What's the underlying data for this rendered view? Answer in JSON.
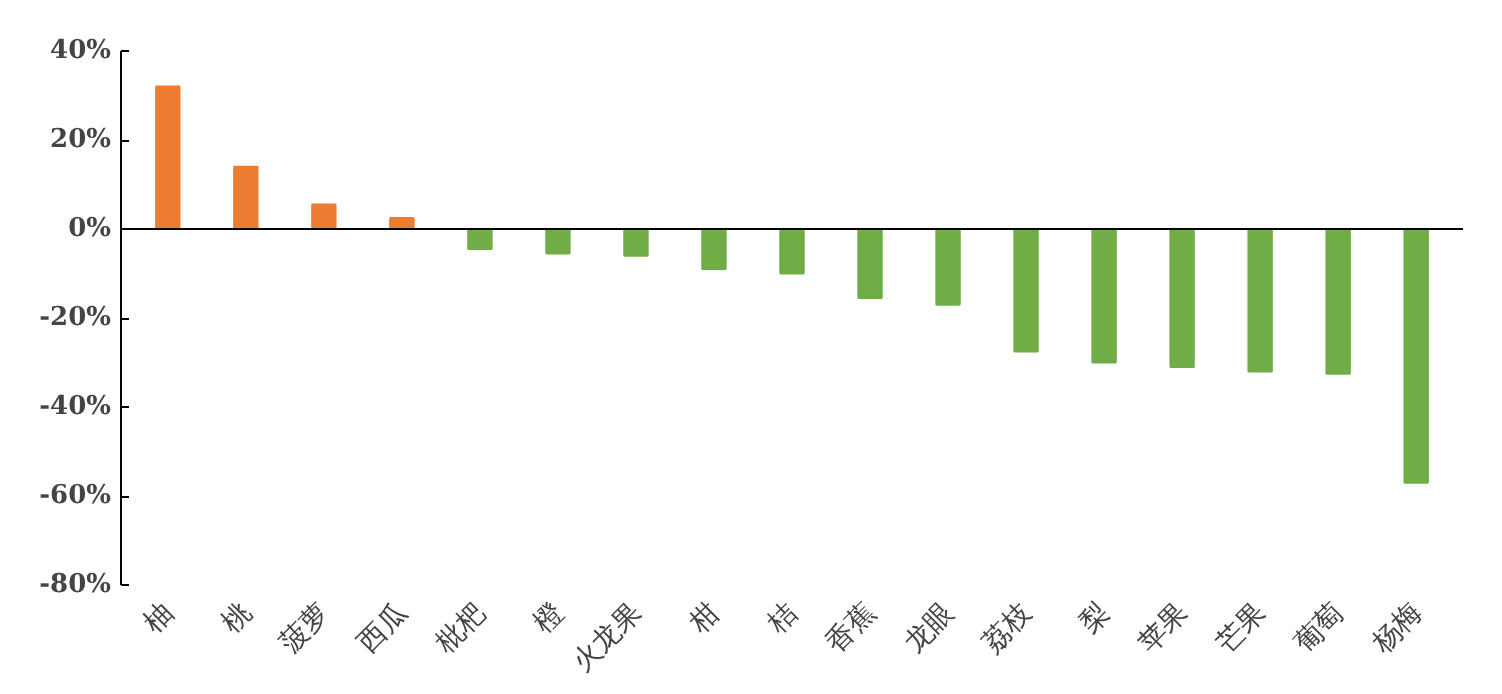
{
  "chart_data": {
    "type": "bar",
    "categories": [
      "柚",
      "桃",
      "菠萝",
      "西瓜",
      "枇杷",
      "橙",
      "火龙果",
      "柑",
      "桔",
      "香蕉",
      "龙眼",
      "荔枝",
      "梨",
      "苹果",
      "芒果",
      "葡萄",
      "杨梅"
    ],
    "values": [
      32,
      14,
      5.5,
      2.5,
      -4.5,
      -5.5,
      -6,
      -9,
      -10,
      -15.5,
      -17,
      -27.5,
      -30,
      -31,
      -32,
      -32.5,
      -57
    ],
    "colors": [
      "#ed7d31",
      "#ed7d31",
      "#ed7d31",
      "#ed7d31",
      "#70ad47",
      "#70ad47",
      "#70ad47",
      "#70ad47",
      "#70ad47",
      "#70ad47",
      "#70ad47",
      "#70ad47",
      "#70ad47",
      "#70ad47",
      "#70ad47",
      "#70ad47",
      "#70ad47"
    ],
    "yticks": [
      {
        "value": 40,
        "label": "40%"
      },
      {
        "value": 20,
        "label": "20%"
      },
      {
        "value": 0,
        "label": "0%"
      },
      {
        "value": -20,
        "label": "-20%"
      },
      {
        "value": -40,
        "label": "-40%"
      },
      {
        "value": -60,
        "label": "-60%"
      },
      {
        "value": -80,
        "label": "-80%"
      }
    ],
    "ylim": [
      -80,
      40
    ]
  }
}
